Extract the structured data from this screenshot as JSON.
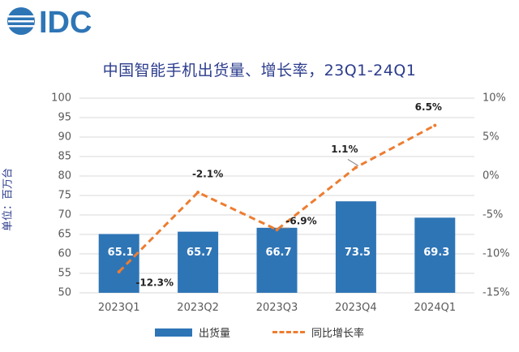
{
  "brand": {
    "name": "IDC",
    "color": "#2e75b6"
  },
  "chart_data": {
    "type": "bar",
    "title": "中国智能手机出货量、增长率，23Q1-24Q1",
    "ylabel": "单位：百万台",
    "categories": [
      "2023Q1",
      "2023Q2",
      "2023Q3",
      "2023Q4",
      "2024Q1"
    ],
    "series": [
      {
        "name": "出货量",
        "type": "bar",
        "axis": "left",
        "color": "#2e75b6",
        "values": [
          65.1,
          65.7,
          66.7,
          73.5,
          69.3
        ],
        "labels": [
          "65.1",
          "65.7",
          "66.7",
          "73.5",
          "69.3"
        ]
      },
      {
        "name": "同比增长率",
        "type": "line",
        "axis": "right",
        "color": "#ed7d31",
        "style": "dashed",
        "values": [
          -12.3,
          -2.1,
          -6.9,
          1.1,
          6.5
        ],
        "labels": [
          "-12.3%",
          "-2.1%",
          "-6.9%",
          "1.1%",
          "6.5%"
        ]
      }
    ],
    "y_left": {
      "min": 50,
      "max": 100,
      "step": 5,
      "ticks": [
        "50",
        "55",
        "60",
        "65",
        "70",
        "75",
        "80",
        "85",
        "90",
        "95",
        "100"
      ]
    },
    "y_right": {
      "min": -15,
      "max": 10,
      "step": 5,
      "ticks": [
        "-15%",
        "-10%",
        "-5%",
        "0%",
        "5%",
        "10%"
      ]
    },
    "grid": true,
    "legend_position": "bottom"
  }
}
